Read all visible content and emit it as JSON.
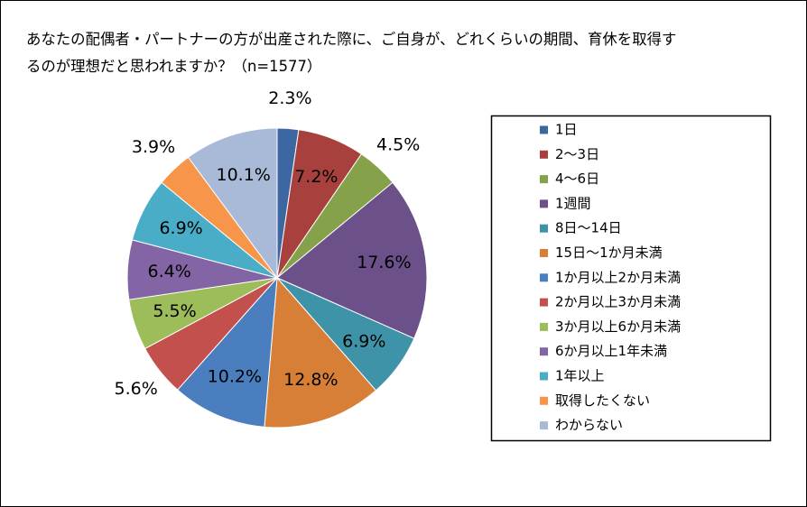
{
  "chart_data": {
    "type": "pie",
    "title": "あなたの配偶者・パートナーの方が出産された際に、ご自身が、どれくらいの期間、育休を取得するのが理想だと思われますか？（n=1577）",
    "categories": [
      "1日",
      "2〜3日",
      "4〜6日",
      "1週間",
      "8日〜14日",
      "15日〜1か月未満",
      "1か月以上2か月未満",
      "2か月以上3か月未満",
      "3か月以上6か月未満",
      "6か月以上1年未満",
      "1年以上",
      "取得したくない",
      "わからない"
    ],
    "values": [
      2.3,
      7.2,
      4.5,
      17.6,
      6.9,
      12.8,
      10.2,
      5.6,
      5.5,
      6.4,
      6.9,
      3.9,
      10.1
    ],
    "value_labels": [
      "2.3%",
      "7.2%",
      "4.5%",
      "17.6%",
      "6.9%",
      "12.8%",
      "10.2%",
      "5.6%",
      "5.5%",
      "6.4%",
      "6.9%",
      "3.9%",
      "10.1%"
    ],
    "colors": [
      "#3d67a0",
      "#a8413e",
      "#85a24a",
      "#6b5089",
      "#3f93a9",
      "#d77f36",
      "#4a7ebf",
      "#c4504d",
      "#9cbd5a",
      "#8365a5",
      "#4aadc8",
      "#f7964a",
      "#a9bad9"
    ],
    "legend": "right"
  }
}
